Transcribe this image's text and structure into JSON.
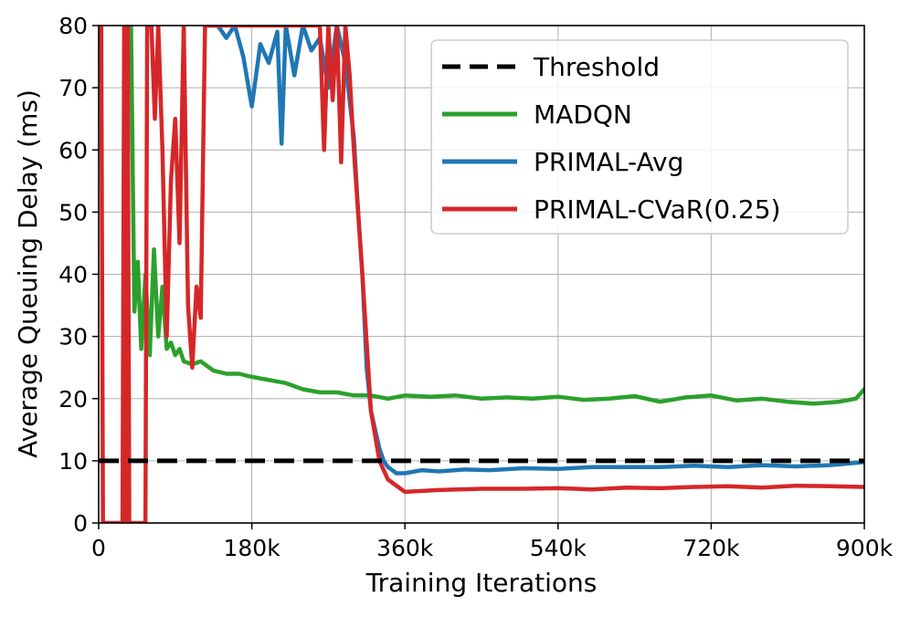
{
  "chart_data": {
    "type": "line",
    "title": "",
    "xlabel": "Training Iterations",
    "ylabel": "Average Queuing Delay (ms)",
    "xlim": [
      0,
      900000
    ],
    "ylim": [
      0,
      80
    ],
    "grid": true,
    "legend_position": "top-right",
    "x_ticks": [
      {
        "value": 0,
        "label": "0"
      },
      {
        "value": 180000,
        "label": "180k"
      },
      {
        "value": 360000,
        "label": "360k"
      },
      {
        "value": 540000,
        "label": "540k"
      },
      {
        "value": 720000,
        "label": "720k"
      },
      {
        "value": 900000,
        "label": "900k"
      }
    ],
    "y_ticks": [
      {
        "value": 0,
        "label": "0"
      },
      {
        "value": 10,
        "label": "10"
      },
      {
        "value": 20,
        "label": "20"
      },
      {
        "value": 30,
        "label": "30"
      },
      {
        "value": 40,
        "label": "40"
      },
      {
        "value": 50,
        "label": "50"
      },
      {
        "value": 60,
        "label": "60"
      },
      {
        "value": 70,
        "label": "70"
      },
      {
        "value": 80,
        "label": "80"
      }
    ],
    "series": [
      {
        "name": "Threshold",
        "color": "#000000",
        "dashed": true,
        "x": [
          0,
          900000
        ],
        "y": [
          10,
          10
        ]
      },
      {
        "name": "MADQN",
        "color": "#2ca02c",
        "dashed": false,
        "x": [
          38000,
          42000,
          46000,
          50000,
          55000,
          60000,
          65000,
          70000,
          75000,
          80000,
          85000,
          90000,
          95000,
          100000,
          110000,
          120000,
          135000,
          150000,
          165000,
          180000,
          200000,
          220000,
          240000,
          260000,
          280000,
          300000,
          320000,
          340000,
          360000,
          390000,
          420000,
          450000,
          480000,
          510000,
          540000,
          570000,
          600000,
          630000,
          660000,
          690000,
          720000,
          750000,
          780000,
          810000,
          840000,
          870000,
          890000,
          900000
        ],
        "y": [
          80,
          34,
          42,
          28,
          40,
          27,
          44,
          30,
          38,
          28,
          29,
          27,
          28,
          26,
          25.5,
          26,
          24.5,
          24,
          24,
          23.5,
          23,
          22.5,
          21.5,
          21,
          21,
          20.5,
          20.5,
          20,
          20.5,
          20.3,
          20.5,
          20,
          20.2,
          20,
          20.3,
          19.8,
          20,
          20.4,
          19.5,
          20.2,
          20.5,
          19.7,
          20,
          19.5,
          19.2,
          19.5,
          20,
          21.5
        ]
      },
      {
        "name": "PRIMAL-Avg",
        "color": "#1f77b4",
        "dashed": false,
        "x": [
          130000,
          140000,
          150000,
          160000,
          170000,
          180000,
          190000,
          200000,
          210000,
          215000,
          220000,
          230000,
          240000,
          250000,
          260000,
          270000,
          280000,
          290000,
          300000,
          305000,
          310000,
          315000,
          320000,
          325000,
          330000,
          335000,
          340000,
          350000,
          360000,
          380000,
          400000,
          430000,
          460000,
          500000,
          540000,
          580000,
          620000,
          660000,
          700000,
          740000,
          780000,
          820000,
          860000,
          900000
        ],
        "y": [
          80,
          80,
          78,
          80,
          75,
          67,
          77,
          74,
          79,
          61,
          80,
          72,
          80,
          76,
          78,
          70,
          80,
          74,
          62,
          50,
          40,
          25,
          18,
          15,
          12,
          10,
          9,
          8,
          8,
          8.5,
          8.3,
          8.6,
          8.5,
          8.8,
          8.7,
          9,
          9,
          9,
          9.2,
          9,
          9.3,
          9.1,
          9.3,
          9.8
        ]
      },
      {
        "name": "PRIMAL-CVaR(0.25)",
        "color": "#d62728",
        "dashed": false,
        "x": [
          0,
          3000,
          5000,
          10000,
          20000,
          28000,
          30000,
          32000,
          34000,
          36000,
          38000,
          55000,
          57000,
          60000,
          62000,
          66000,
          70000,
          75000,
          80000,
          85000,
          90000,
          95000,
          100000,
          105000,
          110000,
          115000,
          120000,
          125000,
          260000,
          265000,
          270000,
          275000,
          280000,
          285000,
          290000,
          295000,
          300000,
          310000,
          320000,
          330000,
          340000,
          360000,
          400000,
          450000,
          500000,
          540000,
          580000,
          620000,
          660000,
          700000,
          740000,
          780000,
          820000,
          860000,
          900000
        ],
        "y": [
          80,
          80,
          0,
          0,
          0,
          0,
          80,
          0,
          80,
          0,
          0,
          0,
          80,
          80,
          80,
          65,
          80,
          60,
          30,
          55,
          65,
          45,
          80,
          35,
          25,
          38,
          33,
          80,
          80,
          60,
          80,
          68,
          80,
          58,
          80,
          72,
          60,
          40,
          18,
          10,
          7,
          5,
          5.3,
          5.5,
          5.5,
          5.6,
          5.4,
          5.7,
          5.6,
          5.8,
          5.9,
          5.7,
          6,
          5.9,
          5.8
        ]
      }
    ]
  }
}
